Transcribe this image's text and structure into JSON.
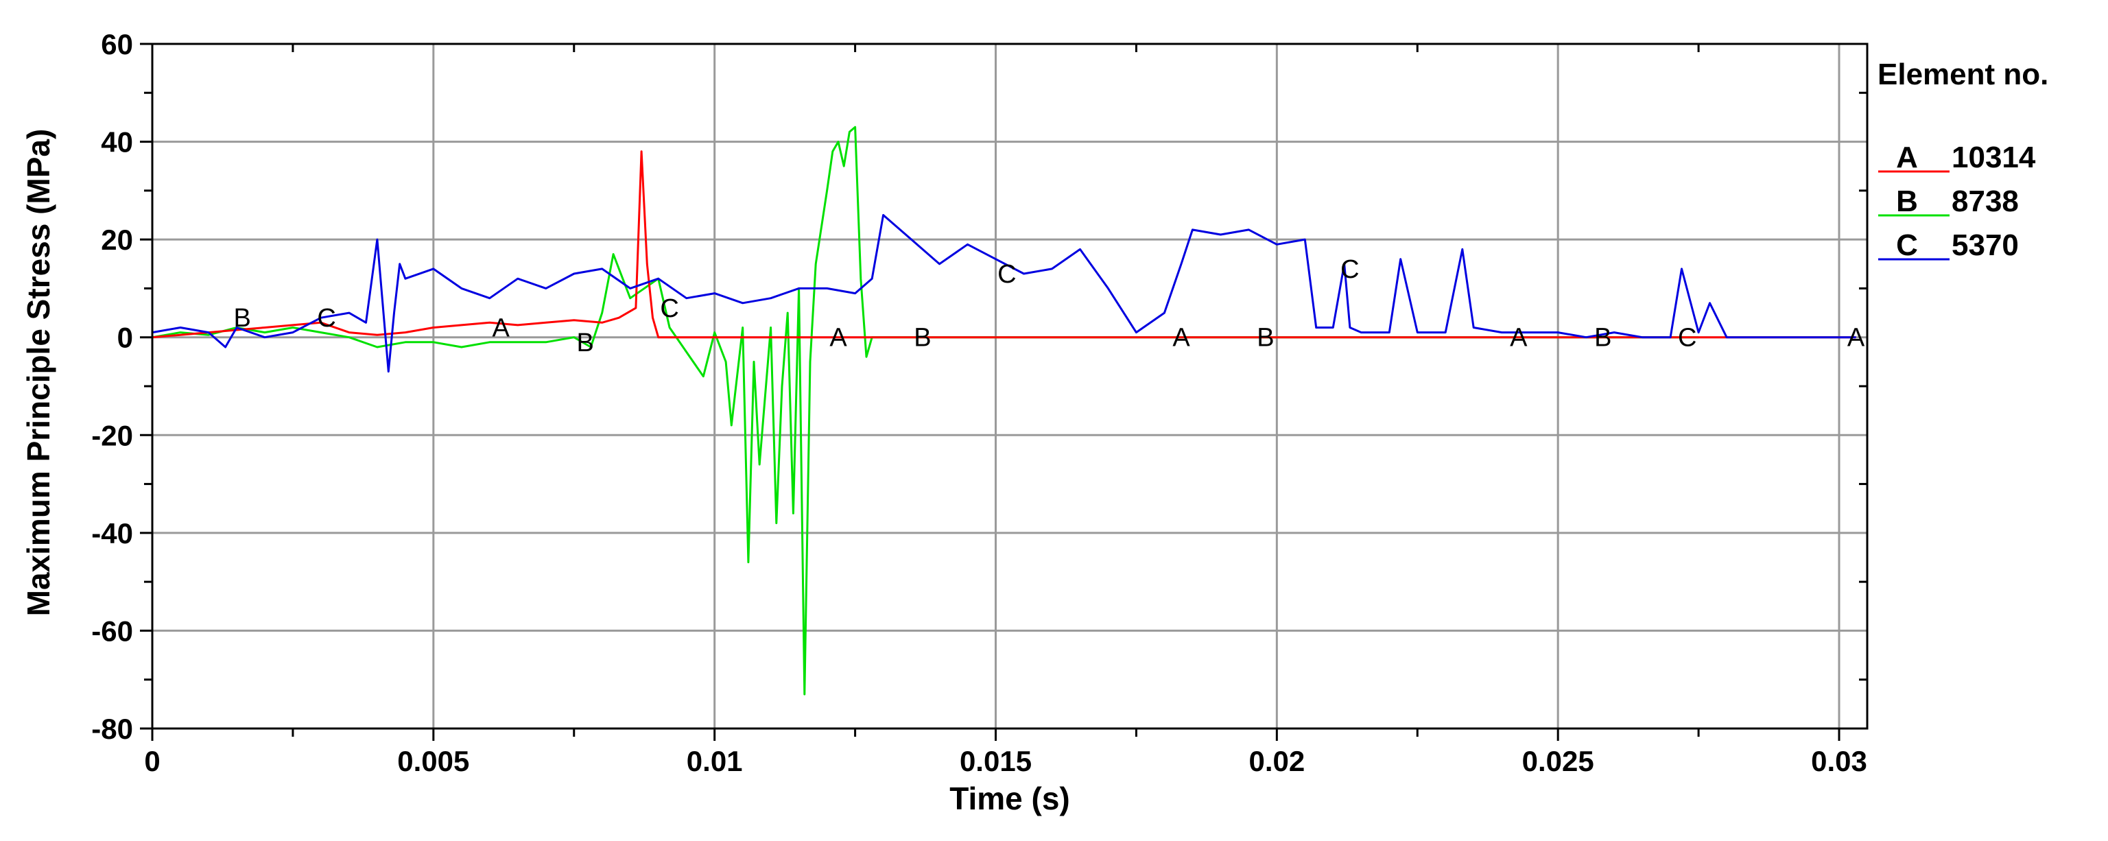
{
  "chart_data": {
    "type": "line",
    "xlabel": "Time (s)",
    "ylabel": "Maximum Principle Stress (MPa)",
    "xlim": [
      0,
      0.0305
    ],
    "ylim": [
      -80,
      60
    ],
    "xticks": [
      0,
      0.005,
      0.01,
      0.015,
      0.02,
      0.025,
      0.03
    ],
    "xtick_labels": [
      "0",
      "0.005",
      "0.01",
      "0.015",
      "0.02",
      "0.025",
      "0.03"
    ],
    "yticks": [
      -80,
      -60,
      -40,
      -20,
      0,
      20,
      40,
      60
    ],
    "ytick_labels": [
      "-80",
      "-60",
      "-40",
      "-20",
      "0",
      "20",
      "40",
      "60"
    ],
    "grid": true,
    "legend_title": "Element no.",
    "legend_position": "right",
    "series": [
      {
        "name": "10314",
        "marker": "A",
        "color": "#ff0000",
        "x": [
          0,
          0.0005,
          0.001,
          0.0015,
          0.002,
          0.0025,
          0.003,
          0.0035,
          0.004,
          0.0045,
          0.005,
          0.0055,
          0.006,
          0.0065,
          0.007,
          0.0075,
          0.008,
          0.0083,
          0.0086,
          0.0087,
          0.0088,
          0.0089,
          0.009,
          0.0095,
          0.01,
          0.012,
          0.015,
          0.02,
          0.025,
          0.0303
        ],
        "y": [
          0,
          0.5,
          1,
          1.5,
          2,
          2.5,
          3,
          1,
          0.5,
          1,
          2,
          2.5,
          3,
          2.5,
          3,
          3.5,
          3,
          4,
          6,
          38,
          15,
          4,
          0,
          0,
          0,
          0,
          0,
          0,
          0,
          0
        ]
      },
      {
        "name": "8738",
        "marker": "B",
        "color": "#00e000",
        "x": [
          0,
          0.0005,
          0.001,
          0.0015,
          0.002,
          0.0025,
          0.003,
          0.0035,
          0.004,
          0.0045,
          0.005,
          0.0055,
          0.006,
          0.0065,
          0.007,
          0.0075,
          0.0078,
          0.008,
          0.0082,
          0.0085,
          0.009,
          0.0092,
          0.0095,
          0.0098,
          0.01,
          0.0102,
          0.0103,
          0.0105,
          0.0106,
          0.0107,
          0.0108,
          0.011,
          0.0111,
          0.0112,
          0.0113,
          0.0114,
          0.0115,
          0.0116,
          0.0117,
          0.0118,
          0.012,
          0.0121,
          0.0122,
          0.0123,
          0.0124,
          0.0125,
          0.0126,
          0.0127,
          0.0128,
          0.013,
          0.015,
          0.02,
          0.025,
          0.0275
        ],
        "y": [
          0,
          1,
          0.5,
          2,
          1,
          2,
          1,
          0,
          -2,
          -1,
          -1,
          -2,
          -1,
          -1,
          -1,
          0,
          -2,
          5,
          17,
          8,
          12,
          2,
          -3,
          -8,
          1,
          -5,
          -18,
          2,
          -46,
          -5,
          -26,
          2,
          -38,
          -10,
          5,
          -36,
          10,
          -73,
          -5,
          15,
          30,
          38,
          40,
          35,
          42,
          43,
          12,
          -4,
          0,
          0,
          0,
          0,
          0,
          0
        ]
      },
      {
        "name": "5370",
        "marker": "C",
        "color": "#0000e0",
        "x": [
          0,
          0.0005,
          0.001,
          0.0013,
          0.0015,
          0.002,
          0.0025,
          0.003,
          0.0035,
          0.0038,
          0.004,
          0.0042,
          0.0043,
          0.0044,
          0.0045,
          0.005,
          0.0055,
          0.006,
          0.0065,
          0.007,
          0.0075,
          0.008,
          0.0085,
          0.009,
          0.0095,
          0.01,
          0.0105,
          0.011,
          0.0115,
          0.012,
          0.0125,
          0.0128,
          0.013,
          0.0135,
          0.014,
          0.0145,
          0.015,
          0.0155,
          0.016,
          0.0165,
          0.017,
          0.0175,
          0.018,
          0.0183,
          0.0185,
          0.019,
          0.0195,
          0.02,
          0.0205,
          0.0207,
          0.021,
          0.0212,
          0.0213,
          0.0215,
          0.022,
          0.0222,
          0.0225,
          0.023,
          0.0233,
          0.0235,
          0.024,
          0.0245,
          0.025,
          0.0255,
          0.026,
          0.0265,
          0.027,
          0.0272,
          0.0275,
          0.0277,
          0.028,
          0.029,
          0.0303
        ],
        "y": [
          1,
          2,
          1,
          -2,
          2,
          0,
          1,
          4,
          5,
          3,
          20,
          -7,
          5,
          15,
          12,
          14,
          10,
          8,
          12,
          10,
          13,
          14,
          10,
          12,
          8,
          9,
          7,
          8,
          10,
          10,
          9,
          12,
          25,
          20,
          15,
          19,
          16,
          13,
          14,
          18,
          10,
          1,
          5,
          15,
          22,
          21,
          22,
          19,
          20,
          2,
          2,
          15,
          2,
          1,
          1,
          16,
          1,
          1,
          18,
          2,
          1,
          1,
          1,
          0,
          1,
          0,
          0,
          14,
          1,
          7,
          0,
          0,
          0
        ]
      }
    ]
  }
}
